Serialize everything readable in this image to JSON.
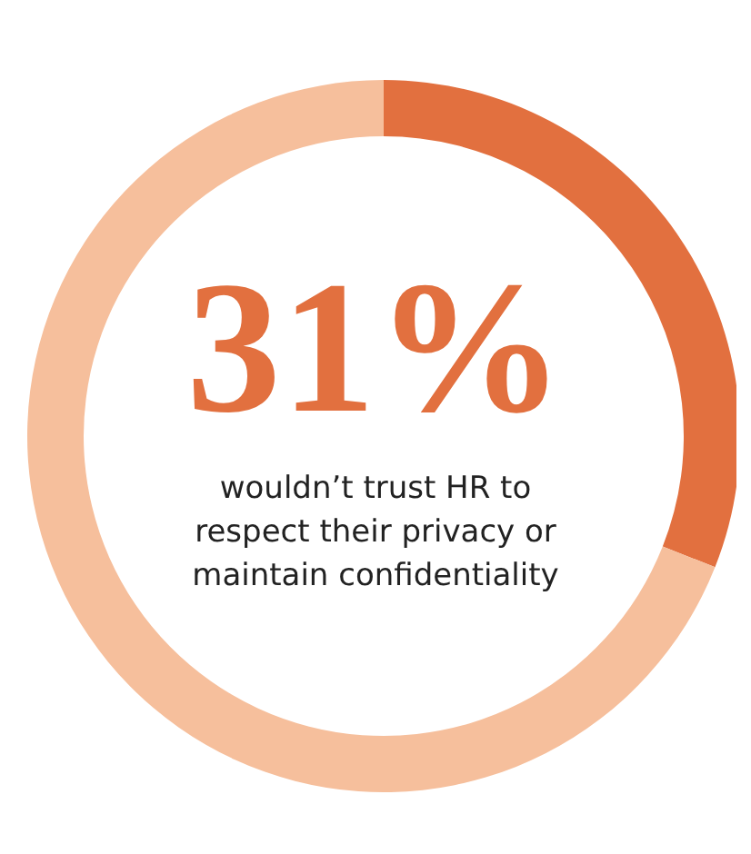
{
  "chart_data": {
    "type": "donut",
    "categories": [
      null,
      null
    ],
    "values": [
      31,
      69
    ],
    "colors": [
      "#e2703f",
      "#f6bf9c"
    ],
    "value_labels": [
      "31%",
      null
    ],
    "annotations": [
      "wouldn’t trust HR to respect their privacy or maintain confidentiality"
    ]
  }
}
